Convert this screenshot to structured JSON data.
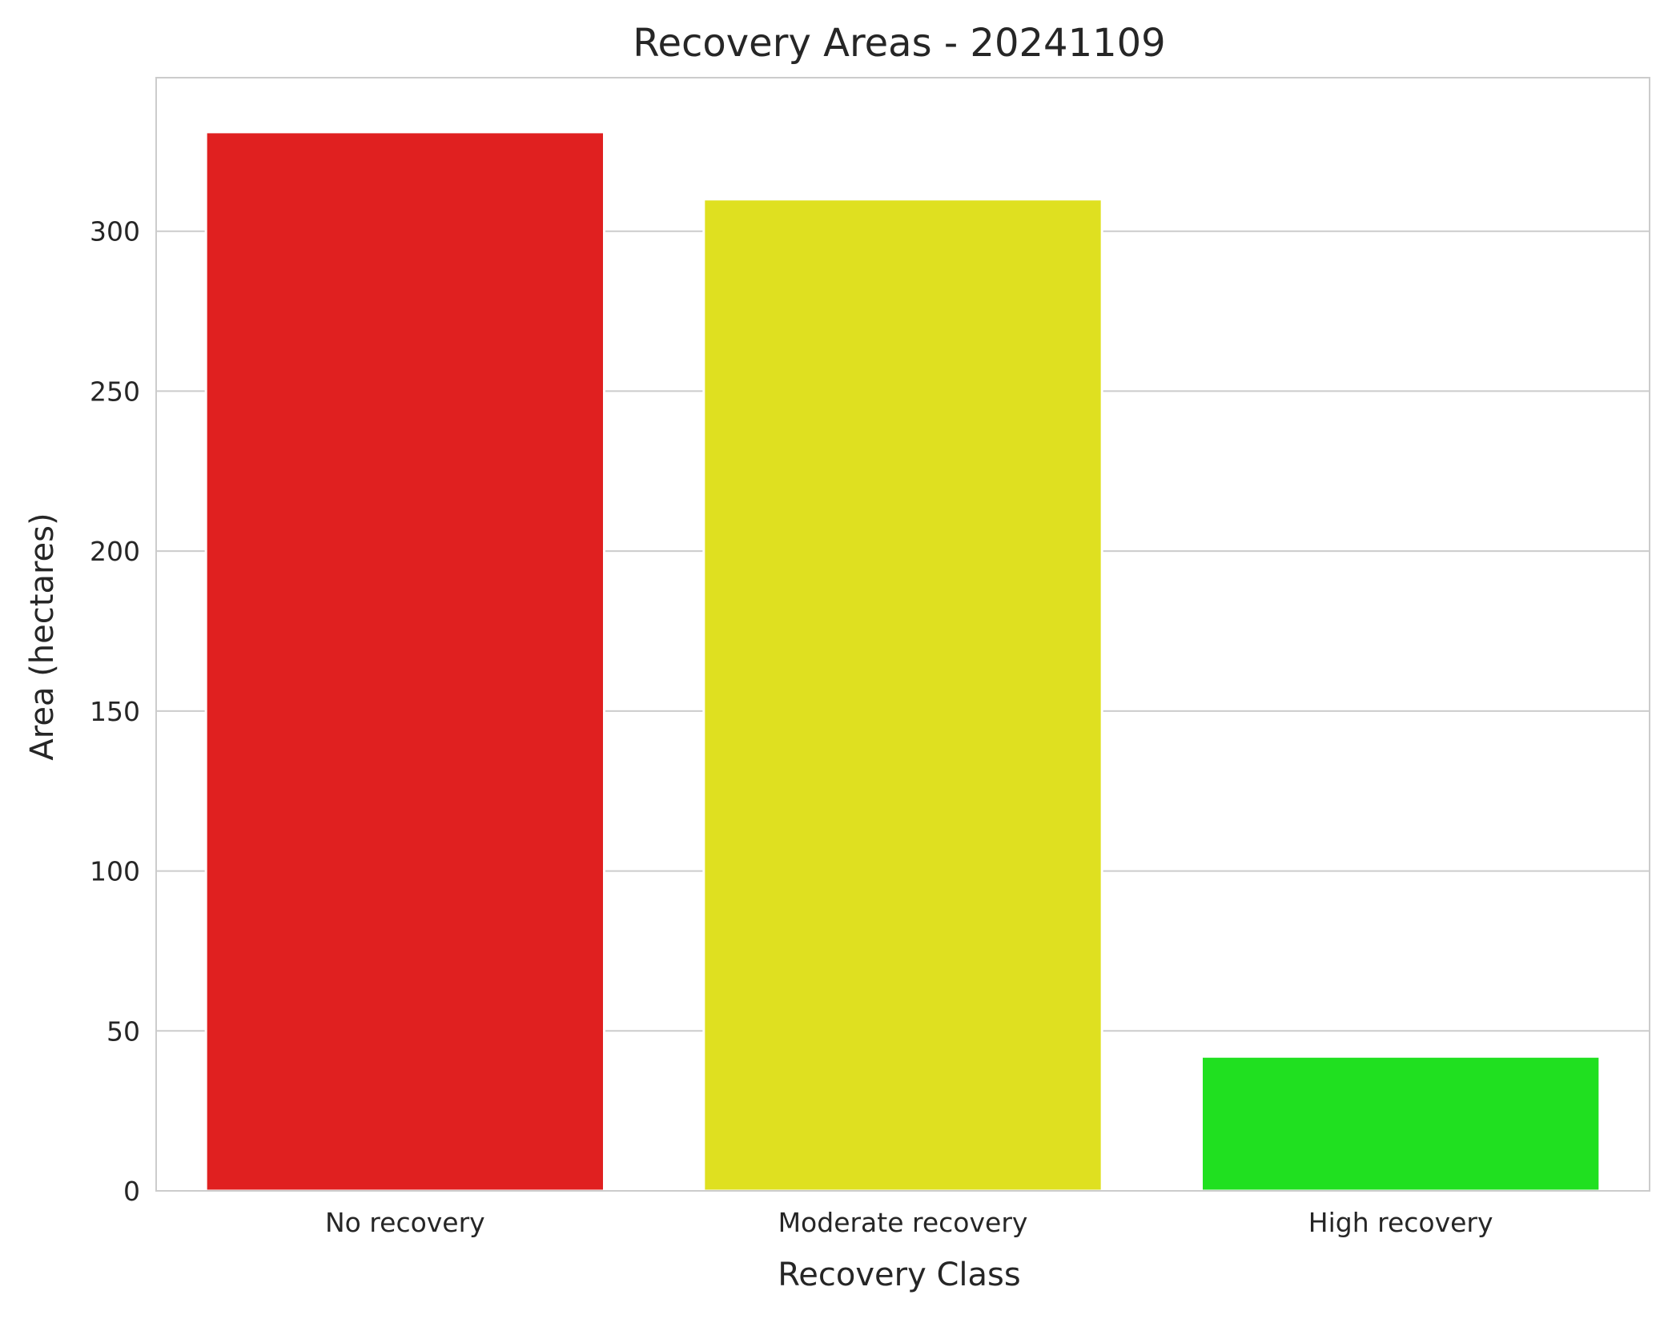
{
  "chart_data": {
    "type": "bar",
    "title": "Recovery Areas - 20241109",
    "xlabel": "Recovery Class",
    "ylabel": "Area (hectares)",
    "categories": [
      "No recovery",
      "Moderate recovery",
      "High recovery"
    ],
    "values": [
      331,
      310,
      42
    ],
    "colors": [
      "#e02020",
      "#dfe020",
      "#20e020"
    ],
    "ylim": [
      0,
      348
    ],
    "yticks": [
      0,
      50,
      100,
      150,
      200,
      250,
      300
    ],
    "grid": "horizontal",
    "frame_color": "#cccccc",
    "grid_color": "#cccccc"
  }
}
